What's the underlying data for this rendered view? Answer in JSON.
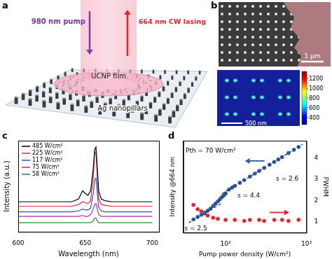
{
  "panel_a": {
    "label": "a",
    "texts": {
      "pump": "980 nm pump",
      "lasing": "664 nm CW lasing",
      "film": "UCNP film",
      "pillars": "Ag nanopillars"
    }
  },
  "panel_b": {
    "label": "b",
    "sem_scale_bar": "1 μm",
    "field_scale_bar": "500 nm",
    "colorbar": {
      "range": [
        250,
        1350
      ],
      "ticks": [
        400,
        600,
        800,
        1000,
        1200
      ]
    }
  },
  "chart_data": [
    {
      "label": "c",
      "type": "line",
      "x_label": "Wavelength (nm)",
      "y_label": "Intensity (a.u.)",
      "x": [
        600,
        610,
        620,
        630,
        640,
        645,
        648,
        650,
        652,
        654,
        656,
        657,
        658,
        659,
        660,
        662,
        665,
        670,
        680,
        690,
        700
      ],
      "series": [
        {
          "name": "485 W/cm²",
          "color": "#000000",
          "values": [
            0.33,
            0.33,
            0.33,
            0.33,
            0.33,
            0.36,
            0.45,
            0.42,
            0.4,
            0.45,
            0.7,
            0.9,
            0.93,
            0.7,
            0.45,
            0.36,
            0.34,
            0.33,
            0.33,
            0.33,
            0.33
          ]
        },
        {
          "name": "225 W/cm²",
          "color": "#e3262b",
          "values": [
            0.28,
            0.28,
            0.28,
            0.28,
            0.28,
            0.3,
            0.33,
            0.32,
            0.31,
            0.34,
            0.6,
            0.85,
            0.88,
            0.6,
            0.36,
            0.3,
            0.29,
            0.28,
            0.28,
            0.28,
            0.28
          ]
        },
        {
          "name": "117 W/cm²",
          "color": "#2b4fd8",
          "values": [
            0.22,
            0.22,
            0.22,
            0.22,
            0.22,
            0.23,
            0.25,
            0.24,
            0.24,
            0.26,
            0.42,
            0.57,
            0.59,
            0.42,
            0.27,
            0.23,
            0.22,
            0.22,
            0.22,
            0.22,
            0.22
          ]
        },
        {
          "name": "75 W/cm²",
          "color": "#c0289a",
          "values": [
            0.17,
            0.17,
            0.17,
            0.17,
            0.17,
            0.17,
            0.18,
            0.17,
            0.17,
            0.19,
            0.25,
            0.3,
            0.31,
            0.25,
            0.19,
            0.17,
            0.17,
            0.17,
            0.17,
            0.17,
            0.17
          ]
        },
        {
          "name": "58 W/cm²",
          "color": "#2e8b3a",
          "values": [
            0.1,
            0.1,
            0.1,
            0.1,
            0.1,
            0.1,
            0.1,
            0.1,
            0.1,
            0.1,
            0.12,
            0.15,
            0.15,
            0.12,
            0.1,
            0.1,
            0.1,
            0.1,
            0.1,
            0.1,
            0.1
          ]
        }
      ],
      "xlim": [
        600,
        705
      ],
      "xticks": [
        600,
        650,
        700
      ],
      "ylim": [
        0,
        1
      ],
      "tick_labels": "x",
      "legend": "upper left",
      "grid": false
    },
    {
      "label": "d",
      "type": "scatter",
      "x_label": "Pump power density (W/cm²)",
      "y_label": "Intensity @664 nm",
      "y2_label": "FWHM",
      "log": true,
      "xlim": [
        30,
        1000
      ],
      "xticks": [
        {
          "value": 100,
          "label": "10²"
        },
        {
          "value": 1000,
          "label": "10³"
        }
      ],
      "ylim": [
        0.3,
        20000
      ],
      "y2lim": [
        0.5,
        4.8
      ],
      "y2ticks": [
        1,
        2,
        3,
        4
      ],
      "grid": false,
      "series": [
        {
          "color": "#2d5da8",
          "marker": "circle",
          "x": [
            40,
            45,
            50,
            55,
            60,
            65,
            70,
            75,
            80,
            85,
            90,
            95,
            100,
            110,
            120,
            130,
            150,
            170,
            200,
            230,
            260,
            300,
            350,
            400,
            450,
            500,
            600,
            700,
            800
          ],
          "values": [
            1.5,
            2.0,
            2.6,
            3.4,
            4.3,
            5.5,
            7.6,
            10,
            13,
            17,
            22,
            27,
            34,
            55,
            69,
            85,
            124,
            172,
            263,
            377,
            518,
            750,
            1100,
            1550,
            2100,
            2750,
            4500,
            6600,
            9400
          ]
        },
        {
          "color": "#e3262b",
          "marker": "circle",
          "axis": "y2",
          "x": [
            40,
            45,
            50,
            55,
            60,
            70,
            80,
            100,
            130,
            170,
            200,
            260,
            300,
            400,
            500,
            600,
            800
          ],
          "values": [
            1.8,
            1.6,
            1.5,
            1.4,
            1.3,
            1.2,
            1.15,
            1.1,
            1.1,
            1.05,
            1.1,
            1.1,
            1.05,
            1.1,
            1.1,
            1.05,
            1.1
          ]
        },
        {
          "type": "line",
          "line_style": "dashed",
          "color": "#333333",
          "x": [
            35,
            90
          ],
          "values": [
            1.0,
            10.6
          ]
        },
        {
          "type": "line",
          "line_style": "dashed",
          "color": "#333333",
          "x": [
            60,
            130
          ],
          "values": [
            3.6,
            108
          ]
        },
        {
          "type": "line",
          "line_style": "dashed",
          "color": "#333333",
          "x": [
            90,
            900
          ],
          "values": [
            33,
            13100
          ]
        }
      ],
      "annotations": [
        {
          "text": "Pth = 70 W/cm²",
          "x": 32,
          "y": 6000
        },
        {
          "text": "s = 2.6",
          "x": 420,
          "y": 200
        },
        {
          "text": "s = 4.4",
          "x": 140,
          "y": 25
        },
        {
          "text": "s = 2.5",
          "x": 31,
          "y": 0.5
        }
      ]
    }
  ]
}
